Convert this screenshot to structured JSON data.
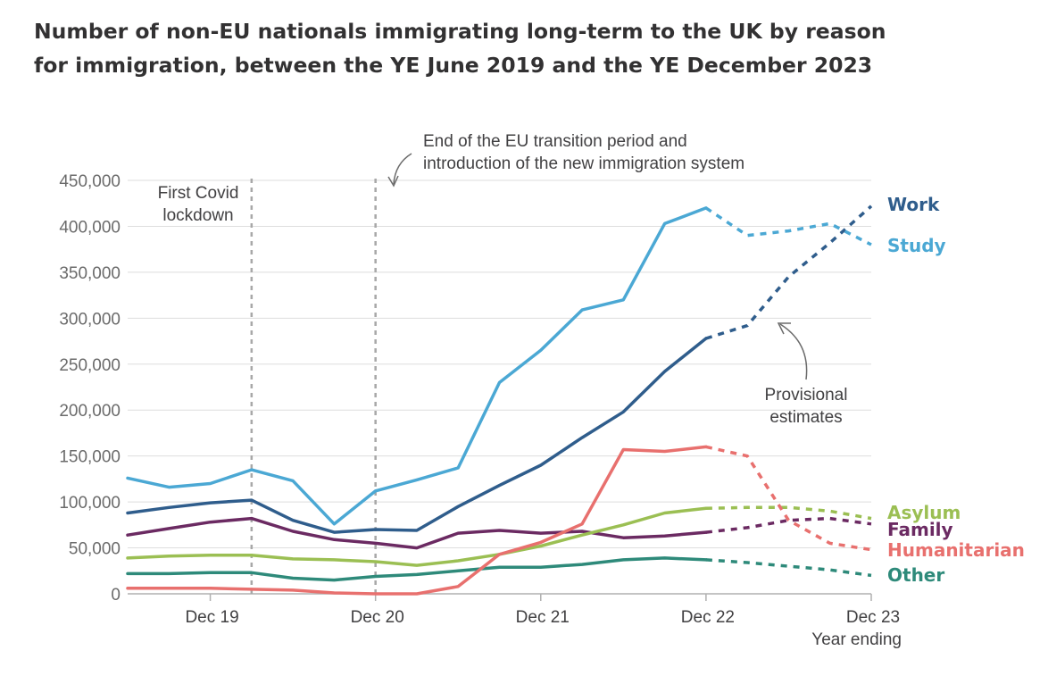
{
  "title": {
    "line1": "Number of non-EU nationals immigrating long-term to the UK by reason",
    "line2": "for immigration, between the YE June 2019 and the YE December 2023"
  },
  "chart_data": {
    "type": "line",
    "title": "Number of non-EU nationals immigrating long-term to the UK by reason for immigration, between the YE June 2019 and the YE December 2023",
    "xlabel": "Year ending",
    "ylabel": "",
    "ylim": [
      0,
      450000
    ],
    "yticks": [
      0,
      50000,
      100000,
      150000,
      200000,
      250000,
      300000,
      350000,
      400000,
      450000
    ],
    "ytick_labels": [
      "0",
      "50,000",
      "100,000",
      "150,000",
      "200,000",
      "250,000",
      "300,000",
      "350,000",
      "400,000",
      "450,000"
    ],
    "x": [
      "Jun 19",
      "Sep 19",
      "Dec 19",
      "Mar 20",
      "Jun 20",
      "Sep 20",
      "Dec 20",
      "Mar 21",
      "Jun 21",
      "Sep 21",
      "Dec 21",
      "Mar 22",
      "Jun 22",
      "Sep 22",
      "Dec 22",
      "Mar 23",
      "Jun 23",
      "Sep 23",
      "Dec 23"
    ],
    "xticks": [
      "Dec 19",
      "Dec 20",
      "Dec 21",
      "Dec 22",
      "Dec 23"
    ],
    "provisional_from": "Dec 22",
    "series": [
      {
        "name": "Work",
        "color": "#2f5d8c",
        "values": [
          88000,
          94000,
          99000,
          102000,
          80000,
          67000,
          70000,
          69000,
          95000,
          118000,
          140000,
          170000,
          198000,
          242000,
          278000,
          292000,
          345000,
          382000,
          422000
        ]
      },
      {
        "name": "Study",
        "color": "#4ba8d4",
        "values": [
          126000,
          116000,
          120000,
          135000,
          123000,
          76000,
          112000,
          124000,
          137000,
          230000,
          265000,
          309000,
          320000,
          403000,
          420000,
          390000,
          395000,
          403000,
          380000
        ]
      },
      {
        "name": "Asylum",
        "color": "#9bbf53",
        "values": [
          39000,
          41000,
          42000,
          42000,
          38000,
          37000,
          35000,
          31000,
          36000,
          43000,
          52000,
          64000,
          75000,
          88000,
          93000,
          94000,
          94000,
          90000,
          82000
        ]
      },
      {
        "name": "Family",
        "color": "#6b2a62",
        "values": [
          64000,
          71000,
          78000,
          82000,
          68000,
          59000,
          55000,
          50000,
          66000,
          69000,
          66000,
          68000,
          61000,
          63000,
          67000,
          72000,
          80000,
          82000,
          76000
        ]
      },
      {
        "name": "Humanitarian",
        "color": "#e8706e",
        "values": [
          6000,
          6000,
          6000,
          5000,
          4000,
          1000,
          0,
          0,
          8000,
          43000,
          56000,
          76000,
          157000,
          155000,
          160000,
          150000,
          80000,
          55000,
          48000
        ]
      },
      {
        "name": "Other",
        "color": "#2e8a7a",
        "values": [
          22000,
          22000,
          23000,
          23000,
          17000,
          15000,
          19000,
          21000,
          25000,
          29000,
          29000,
          32000,
          37000,
          39000,
          37000,
          34000,
          30000,
          26000,
          20000
        ]
      }
    ],
    "annotations": [
      {
        "line1": "First Covid",
        "line2": "lockdown",
        "at": "Mar 20"
      },
      {
        "line1": "End of the EU transition period and",
        "line2": "introduction of the new immigration system",
        "at": "Dec 20"
      },
      {
        "line1": "Provisional",
        "line2": "estimates"
      }
    ],
    "legend": "inline-right"
  }
}
